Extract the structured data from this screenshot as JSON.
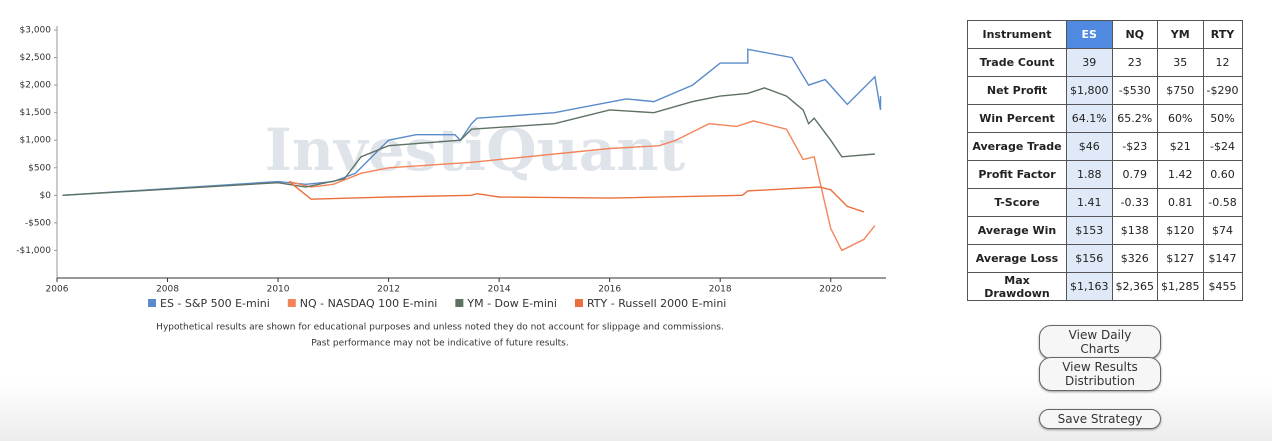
{
  "chart_data": {
    "type": "line",
    "watermark": "InvestiQuant",
    "xlim": [
      2006,
      2021
    ],
    "xticks": [
      2006,
      2008,
      2010,
      2012,
      2014,
      2016,
      2018,
      2020
    ],
    "ylim": [
      -1500,
      3000
    ],
    "yticks": [
      {
        "value": -1000,
        "label": "-$1,000"
      },
      {
        "value": -500,
        "label": "-$500"
      },
      {
        "value": 0,
        "label": "$0"
      },
      {
        "value": 500,
        "label": "$500"
      },
      {
        "value": 1000,
        "label": "$1,000"
      },
      {
        "value": 1500,
        "label": "$1,500"
      },
      {
        "value": 2000,
        "label": "$2,000"
      },
      {
        "value": 2500,
        "label": "$2,500"
      },
      {
        "value": 3000,
        "label": "$3,000"
      }
    ],
    "series": [
      {
        "name": "ES - S&P 500 E-mini",
        "color": "#5b8bcb",
        "x": [
          2006.1,
          2010,
          2010.5,
          2011,
          2011.4,
          2012,
          2012.5,
          2013.2,
          2013.3,
          2013.5,
          2013.6,
          2015,
          2016.3,
          2016.8,
          2017.5,
          2018,
          2018.5,
          2018.5,
          2019.3,
          2019.6,
          2019.9,
          2020.3,
          2020.8,
          2020.9,
          2020.9
        ],
        "values": [
          0,
          250,
          200,
          250,
          400,
          1000,
          1100,
          1100,
          1000,
          1300,
          1400,
          1500,
          1750,
          1700,
          2000,
          2400,
          2400,
          2650,
          2500,
          2000,
          2100,
          1650,
          2150,
          1550,
          1800
        ]
      },
      {
        "name": "NQ - NASDAQ 100 E-mini",
        "color": "#f3845a",
        "x": [
          2010.2,
          2010.6,
          2011,
          2011.5,
          2012,
          2013.5,
          2016,
          2016.9,
          2017.2,
          2017.8,
          2018.3,
          2018.6,
          2019.2,
          2019.5,
          2019.7,
          2020,
          2020.2,
          2020.6,
          2020.8
        ],
        "values": [
          250,
          150,
          200,
          400,
          500,
          600,
          850,
          900,
          1000,
          1300,
          1250,
          1350,
          1200,
          650,
          700,
          -600,
          -1000,
          -800,
          -550
        ]
      },
      {
        "name": "YM - Dow E-mini",
        "color": "#5e7263",
        "x": [
          2006.1,
          2010,
          2010.5,
          2011.2,
          2011.5,
          2012,
          2013.3,
          2013.5,
          2015,
          2016,
          2016.8,
          2017.5,
          2018,
          2018.5,
          2018.8,
          2019.2,
          2019.5,
          2019.6,
          2019.7,
          2020,
          2020.2,
          2020.8
        ],
        "values": [
          0,
          230,
          150,
          300,
          700,
          900,
          1000,
          1200,
          1300,
          1550,
          1500,
          1700,
          1800,
          1850,
          1950,
          1800,
          1550,
          1300,
          1400,
          1000,
          700,
          750
        ]
      },
      {
        "name": "RTY - Russell 2000 E-mini",
        "color": "#ea6f3c",
        "x": [
          2010.2,
          2010.6,
          2012,
          2013.5,
          2013.6,
          2014,
          2016,
          2018.4,
          2018.5,
          2019.8,
          2020,
          2020.3,
          2020.6
        ],
        "values": [
          250,
          -70,
          -30,
          0,
          30,
          -30,
          -50,
          0,
          80,
          150,
          100,
          -200,
          -300
        ]
      }
    ],
    "notes": [
      "Hypothetical results are shown for educational purposes and unless noted they do not account for slippage and commissions.",
      "Past performance may not be indicative of future results."
    ]
  },
  "table": {
    "header": [
      "Instrument",
      "ES",
      "NQ",
      "YM",
      "RTY"
    ],
    "rows": [
      [
        "Trade Count",
        "39",
        "23",
        "35",
        "12"
      ],
      [
        "Net Profit",
        "$1,800",
        "-$530",
        "$750",
        "-$290"
      ],
      [
        "Win Percent",
        "64.1%",
        "65.2%",
        "60%",
        "50%"
      ],
      [
        "Average Trade",
        "$46",
        "-$23",
        "$21",
        "-$24"
      ],
      [
        "Profit Factor",
        "1.88",
        "0.79",
        "1.42",
        "0.60"
      ],
      [
        "T-Score",
        "1.41",
        "-0.33",
        "0.81",
        "-0.58"
      ],
      [
        "Average Win",
        "$153",
        "$138",
        "$120",
        "$74"
      ],
      [
        "Average Loss",
        "$156",
        "$326",
        "$127",
        "$147"
      ],
      [
        "Max Drawdown",
        "$1,163",
        "$2,365",
        "$1,285",
        "$455"
      ]
    ]
  },
  "buttons": [
    "View Daily Charts",
    "View Results Distribution",
    "Save Strategy"
  ]
}
